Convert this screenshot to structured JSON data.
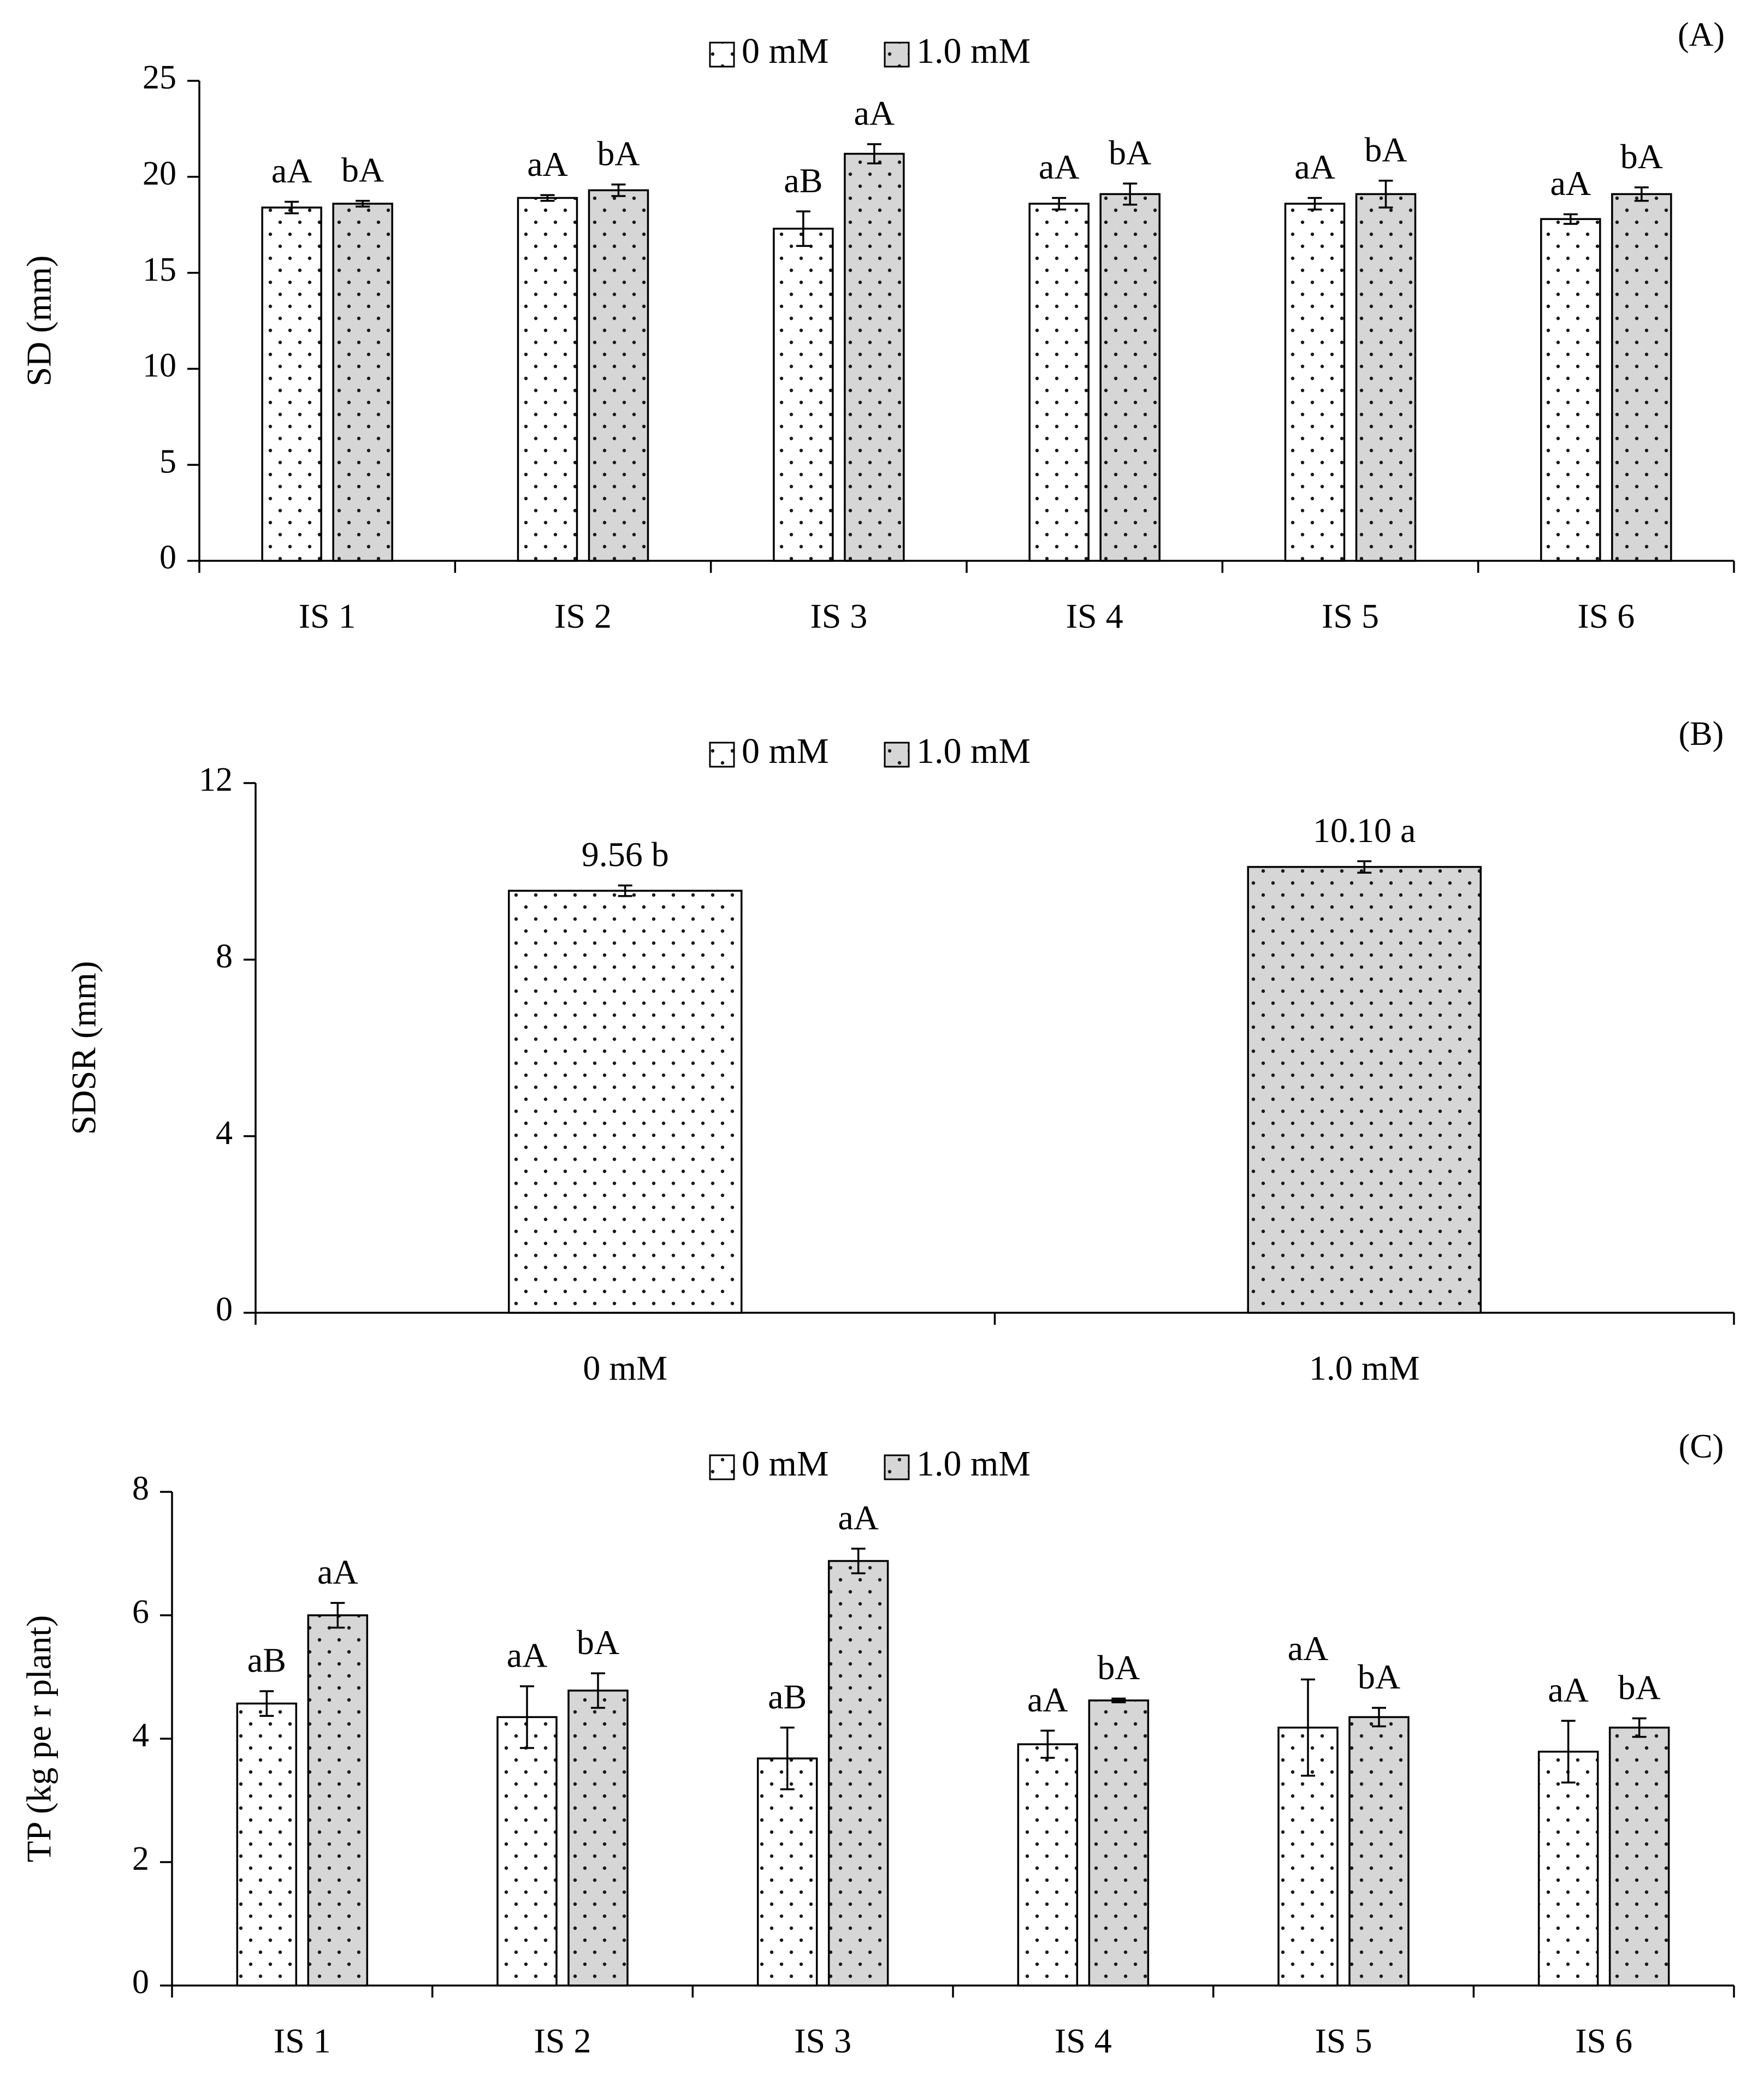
{
  "legend": {
    "series_0": "0 mM",
    "series_1": "1.0 mM"
  },
  "colors": {
    "bar_0": "#ffffff",
    "bar_1": "#d6d6d6",
    "axis": "#000000",
    "dot": "#1a1a1a"
  },
  "chart_data": [
    {
      "id": "A",
      "panel_label": "(A)",
      "type": "bar",
      "ylabel": "SD (mm)",
      "ylim": [
        0,
        25
      ],
      "yticks": [
        "0",
        "5",
        "10",
        "15",
        "20",
        "25"
      ],
      "categories": [
        "IS 1",
        "IS 2",
        "IS 3",
        "IS 4",
        "IS 5",
        "IS 6"
      ],
      "series": [
        {
          "name": "0 mM",
          "values": [
            18.4,
            18.9,
            17.3,
            18.6,
            18.6,
            17.8
          ],
          "errors": [
            0.3,
            0.15,
            0.9,
            0.3,
            0.3,
            0.25
          ],
          "labels": [
            "aA",
            "aA",
            "aB",
            "aA",
            "aA",
            "aA"
          ]
        },
        {
          "name": "1.0 mM",
          "values": [
            18.6,
            19.3,
            21.2,
            19.1,
            19.1,
            19.1
          ],
          "errors": [
            0.15,
            0.3,
            0.5,
            0.55,
            0.7,
            0.35
          ],
          "labels": [
            "bA",
            "bA",
            "aA",
            "bA",
            "bA",
            "bA"
          ]
        }
      ]
    },
    {
      "id": "B",
      "panel_label": "(B)",
      "type": "bar",
      "ylabel": "SDSR (mm)",
      "ylim": [
        0,
        12
      ],
      "yticks": [
        "0",
        "4",
        "8",
        "12"
      ],
      "categories": [
        "0 mM",
        "1.0 mM"
      ],
      "values": [
        9.56,
        10.1
      ],
      "errors": [
        0.12,
        0.13
      ],
      "labels": [
        "9.56 b",
        "10.10 a"
      ]
    },
    {
      "id": "C",
      "panel_label": "(C)",
      "type": "bar",
      "ylabel": "TP (kg pe r plant)",
      "ylim": [
        0,
        8
      ],
      "yticks": [
        "0",
        "2",
        "4",
        "6",
        "8"
      ],
      "categories": [
        "IS 1",
        "IS 2",
        "IS 3",
        "IS 4",
        "IS 5",
        "IS 6"
      ],
      "series": [
        {
          "name": "0 mM",
          "values": [
            4.57,
            4.35,
            3.68,
            3.91,
            4.18,
            3.79
          ],
          "errors": [
            0.2,
            0.5,
            0.5,
            0.22,
            0.78,
            0.5
          ],
          "labels": [
            "aB",
            "aA",
            "aB",
            "aA",
            "aA",
            "aA"
          ]
        },
        {
          "name": "1.0 mM",
          "values": [
            6.0,
            4.78,
            6.88,
            4.62,
            4.35,
            4.18
          ],
          "errors": [
            0.2,
            0.28,
            0.2,
            0.03,
            0.15,
            0.15
          ],
          "labels": [
            "aA",
            "bA",
            "aA",
            "bA",
            "bA",
            "bA"
          ]
        }
      ]
    }
  ]
}
